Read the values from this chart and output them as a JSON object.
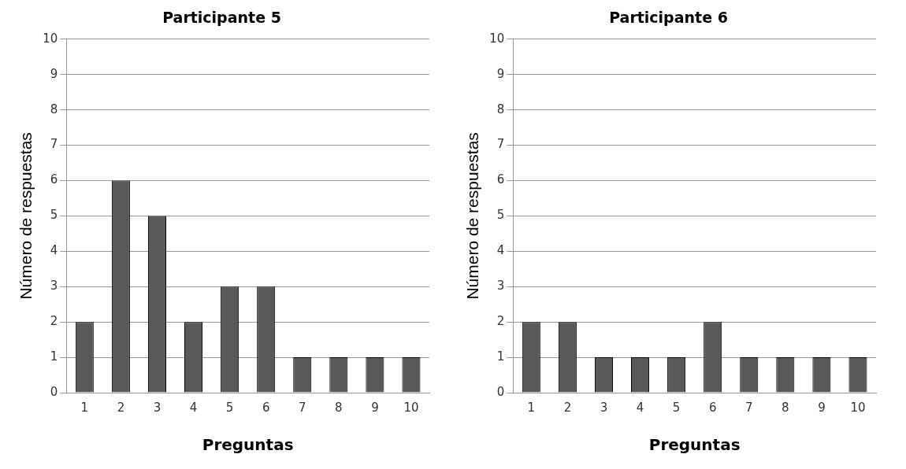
{
  "chart_data": [
    {
      "type": "bar",
      "title": "Participante 5",
      "xlabel": "Preguntas",
      "ylabel": "Número de respuestas",
      "categories": [
        "1",
        "2",
        "3",
        "4",
        "5",
        "6",
        "7",
        "8",
        "9",
        "10"
      ],
      "values": [
        2,
        6,
        5,
        2,
        3,
        3,
        1,
        1,
        1,
        1
      ],
      "color": "#595959",
      "ylim": [
        0,
        10
      ],
      "yticks": [
        0,
        1,
        2,
        3,
        4,
        5,
        6,
        7,
        8,
        9,
        10
      ],
      "grid": "y"
    },
    {
      "type": "bar",
      "title": "Participante 6",
      "xlabel": "Preguntas",
      "ylabel": "Número de respuestas",
      "categories": [
        "1",
        "2",
        "3",
        "4",
        "5",
        "6",
        "7",
        "8",
        "9",
        "10"
      ],
      "values": [
        2,
        2,
        1,
        1,
        1,
        2,
        1,
        1,
        1,
        1
      ],
      "color": "#595959",
      "ylim": [
        0,
        10
      ],
      "yticks": [
        0,
        1,
        2,
        3,
        4,
        5,
        6,
        7,
        8,
        9,
        10
      ],
      "grid": "y"
    }
  ]
}
